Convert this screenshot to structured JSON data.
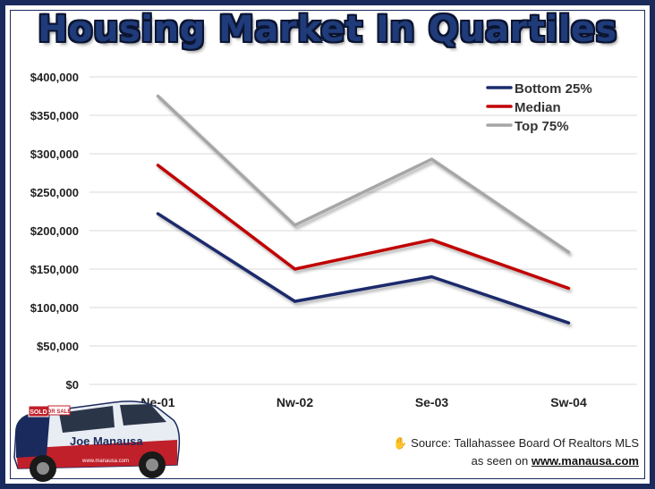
{
  "title": "Housing Market In Quartiles",
  "source": {
    "line1": "Source: Tallahassee Board Of Realtors MLS",
    "line2_prefix": "as seen on",
    "line2_link": "www.manausa.com"
  },
  "car": {
    "sign_sold": "SOLD",
    "sign_sale": "OR SALE",
    "brand": "Joe Manausa",
    "brand_sub": "Real Estate",
    "url": "www.manausa.com"
  },
  "colors": {
    "bottom": "#1a2a6c",
    "median": "#c00000",
    "top": "#a6a6a6",
    "grid": "#d9d9d9",
    "frame": "#1b2a5c"
  },
  "chart_data": {
    "type": "line",
    "categories": [
      "Ne-01",
      "Nw-02",
      "Se-03",
      "Sw-04"
    ],
    "ylim": [
      0,
      400000
    ],
    "yticks": [
      0,
      50000,
      100000,
      150000,
      200000,
      250000,
      300000,
      350000,
      400000
    ],
    "ytick_labels": [
      "$0",
      "$50,000",
      "$100,000",
      "$150,000",
      "$200,000",
      "$250,000",
      "$300,000",
      "$350,000",
      "$400,000"
    ],
    "grid": true,
    "legend_position": "top-right",
    "series": [
      {
        "name": "Bottom 25%",
        "values": [
          222000,
          108000,
          140000,
          80000
        ],
        "color": "#1a2a6c"
      },
      {
        "name": "Median",
        "values": [
          285000,
          150000,
          188000,
          125000
        ],
        "color": "#c00000"
      },
      {
        "name": "Top 75%",
        "values": [
          375000,
          207000,
          293000,
          172000
        ],
        "color": "#a6a6a6"
      }
    ]
  }
}
